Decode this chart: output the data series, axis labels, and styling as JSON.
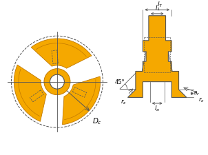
{
  "bg_color": "#ffffff",
  "yellow": "#F5A800",
  "yellow_dark": "#E09800",
  "yellow_edge": "#C07800",
  "gray_line": "#555555",
  "figsize": [
    3.02,
    2.25
  ],
  "dpi": 100
}
